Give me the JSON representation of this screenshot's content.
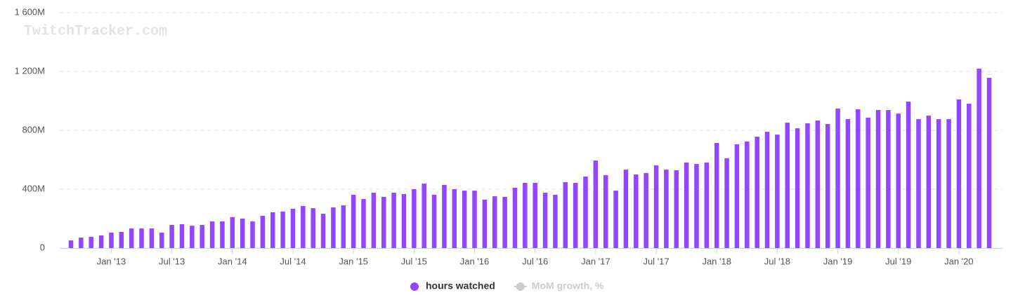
{
  "chart_data": {
    "type": "bar",
    "watermark": "TwitchTracker.com",
    "categories": [
      null,
      null,
      null,
      null,
      "Jan '13",
      null,
      null,
      null,
      null,
      null,
      "Jul '13",
      null,
      null,
      null,
      null,
      null,
      "Jan '14",
      null,
      null,
      null,
      null,
      null,
      "Jul '14",
      null,
      null,
      null,
      null,
      null,
      "Jan '15",
      null,
      null,
      null,
      null,
      null,
      "Jul '15",
      null,
      null,
      null,
      null,
      null,
      "Jan '16",
      null,
      null,
      null,
      null,
      null,
      "Jul '16",
      null,
      null,
      null,
      null,
      null,
      "Jan '17",
      null,
      null,
      null,
      null,
      null,
      "Jul '17",
      null,
      null,
      null,
      null,
      null,
      "Jan '18",
      null,
      null,
      null,
      null,
      null,
      "Jul '18",
      null,
      null,
      null,
      null,
      null,
      "Jan '19",
      null,
      null,
      null,
      null,
      null,
      "Jul '19",
      null,
      null,
      null,
      null,
      null,
      "Jan '20",
      null,
      null,
      null
    ],
    "series": [
      {
        "name": "hours watched",
        "color": "#9147ff",
        "values": [
          52,
          71,
          76,
          86,
          105,
          110,
          133,
          133,
          133,
          105,
          157,
          162,
          152,
          157,
          181,
          181,
          210,
          200,
          181,
          219,
          243,
          248,
          267,
          286,
          271,
          233,
          276,
          290,
          362,
          333,
          376,
          348,
          376,
          367,
          400,
          438,
          362,
          429,
          400,
          390,
          390,
          329,
          352,
          348,
          410,
          443,
          443,
          376,
          362,
          448,
          443,
          486,
          595,
          495,
          390,
          533,
          500,
          510,
          562,
          533,
          529,
          581,
          571,
          581,
          714,
          610,
          705,
          724,
          757,
          790,
          771,
          852,
          814,
          848,
          867,
          843,
          948,
          876,
          943,
          886,
          938,
          938,
          914,
          995,
          876,
          900,
          876,
          876,
          1010,
          981,
          1219,
          1157
        ]
      },
      {
        "name": "MoM growth, %",
        "color": "#cccccc",
        "hidden": true
      }
    ],
    "ylim": [
      0,
      1600
    ],
    "yticks": [
      0,
      {
        "value": 400,
        "label": "400M"
      },
      {
        "value": 800,
        "label": "800M"
      },
      {
        "value": 1200,
        "label": "1 200M"
      },
      {
        "value": 1600,
        "label": "1 600M"
      }
    ],
    "grid": true
  }
}
